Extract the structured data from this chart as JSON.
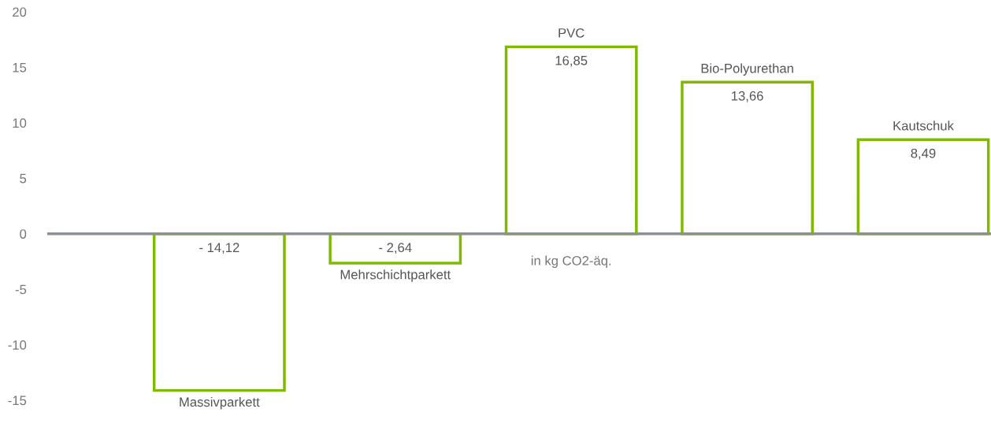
{
  "chart_data": {
    "type": "bar",
    "categories": [
      "Massivparkett",
      "Mehrschichtparkett",
      "PVC",
      "Bio-Polyurethan",
      "Kautschuk"
    ],
    "values": [
      -14.12,
      -2.64,
      16.85,
      13.66,
      8.49
    ],
    "value_labels": [
      "- 14,12",
      "- 2,64",
      "16,85",
      "13,66",
      "8,49"
    ],
    "color": "#7fba00",
    "ylim": [
      -15,
      20
    ],
    "yticks": [
      -15,
      -10,
      -5,
      0,
      5,
      10,
      15,
      20
    ],
    "annotations": [
      "in kg CO2-äq."
    ],
    "legend": false
  }
}
